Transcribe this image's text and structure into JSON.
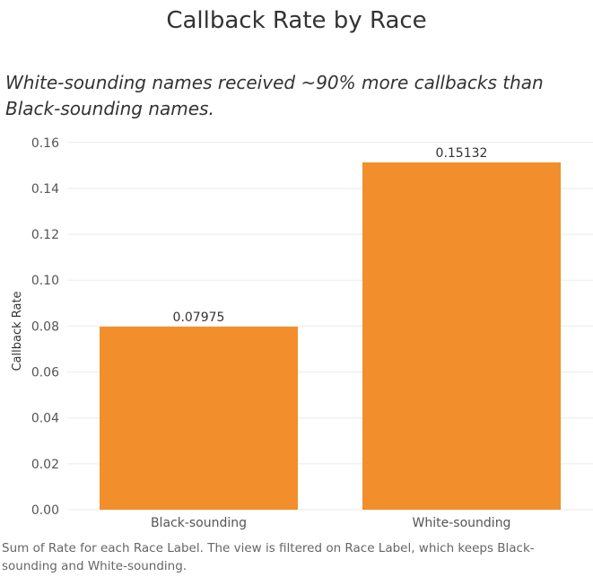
{
  "title": "Callback Rate by Race",
  "subtitle": "White-sounding names received ~90% more callbacks than Black-sounding names.",
  "footnote": "Sum of Rate for each Race Label. The view is filtered on Race Label, which keeps Black-sounding and White-sounding.",
  "colors": {
    "bar": "#f28e2b",
    "grid": "#ebebeb",
    "axis_text": "#555555",
    "label_text": "#333333"
  },
  "chart_data": {
    "type": "bar",
    "categories": [
      "Black-sounding",
      "White-sounding"
    ],
    "values": [
      0.07975,
      0.15132
    ],
    "value_labels": [
      "0.07975",
      "0.15132"
    ],
    "ylabel": "Callback Rate",
    "xlabel": "",
    "ylim": [
      0,
      0.165
    ],
    "yticks": [
      0,
      0.02,
      0.04,
      0.06,
      0.08,
      0.1,
      0.12,
      0.14,
      0.16
    ],
    "ytick_labels": [
      "0.00",
      "0.02",
      "0.04",
      "0.06",
      "0.08",
      "0.10",
      "0.12",
      "0.14",
      "0.16"
    ],
    "grid": true
  }
}
